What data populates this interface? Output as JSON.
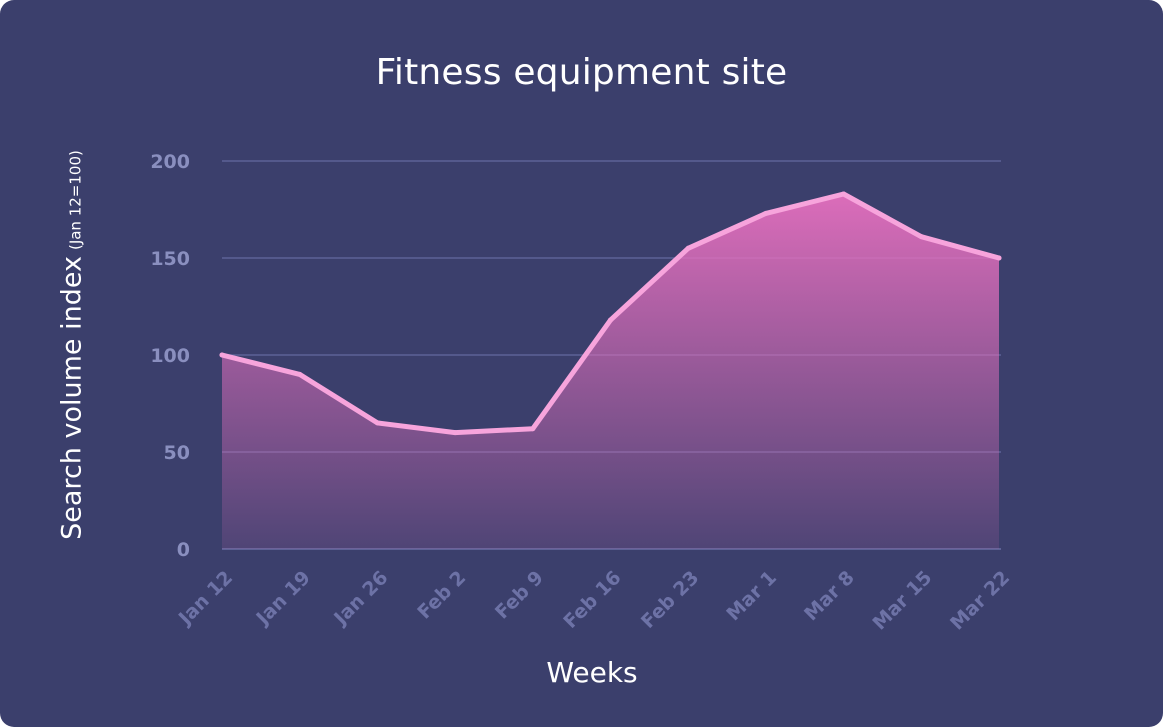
{
  "chart_data": {
    "type": "area",
    "title": "Fitness equipment site",
    "xlabel": "Weeks",
    "ylabel": "Search volume index",
    "ylabel_note": "(Jan 12=100)",
    "categories": [
      "Jan 12",
      "Jan 19",
      "Jan 26",
      "Feb 2",
      "Feb 9",
      "Feb 16",
      "Feb 23",
      "Mar 1",
      "Mar 8",
      "Mar 15",
      "Mar 22"
    ],
    "series": [
      {
        "values": [
          100,
          90,
          65,
          60,
          62,
          118,
          155,
          173,
          183,
          161,
          150
        ]
      }
    ],
    "ylim": [
      0,
      200
    ],
    "yticks": [
      0,
      50,
      100,
      150,
      200
    ],
    "grid": true
  },
  "colors": {
    "background": "#3b3f6c",
    "line": "#f7a4dc",
    "fill_top": "#e46fbe",
    "grid": "#5d6296"
  }
}
